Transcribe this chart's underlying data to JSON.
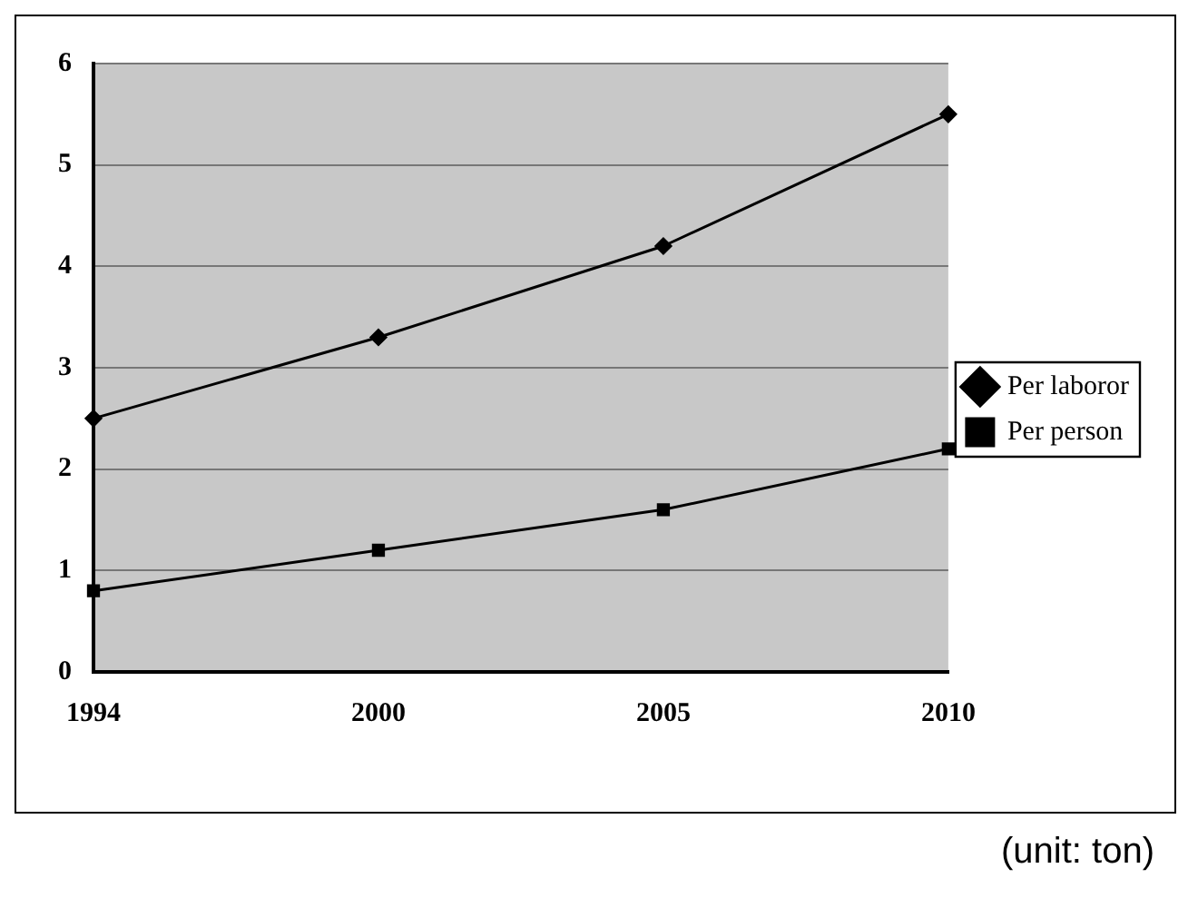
{
  "chart_data": {
    "type": "line",
    "categories": [
      "1994",
      "2000",
      "2005",
      "2010"
    ],
    "series": [
      {
        "name": "Per laboror",
        "color": "#000000",
        "values": [
          2.5,
          3.3,
          4.2,
          5.5
        ],
        "marker": "diamond"
      },
      {
        "name": "Per person",
        "color": "#000000",
        "values": [
          0.8,
          1.2,
          1.6,
          2.2
        ],
        "marker": "square"
      }
    ],
    "ylim": [
      0,
      6
    ],
    "yticks": [
      0,
      1,
      2,
      3,
      4,
      5,
      6
    ],
    "grid": "y",
    "legend": "right",
    "line_style": "solid",
    "annotations": [
      "(unit: ton)"
    ]
  }
}
